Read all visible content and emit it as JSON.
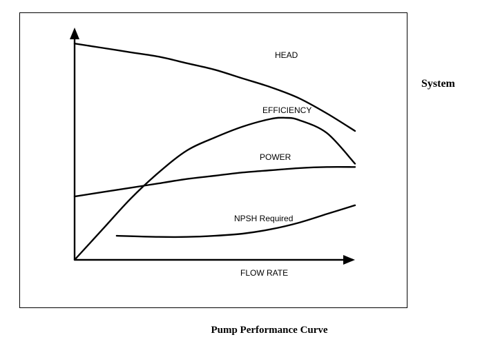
{
  "side_label": "System",
  "caption": "Pump Performance Curve",
  "chart_data": {
    "type": "line",
    "title": "Pump Performance Curve",
    "xlabel": "FLOW RATE",
    "ylabel": "",
    "x_ticks_shown": false,
    "y_ticks_shown": false,
    "grid": false,
    "legend": "none (series labelled inline)",
    "xlim": [
      0,
      1
    ],
    "ylim": [
      0,
      1
    ],
    "series": [
      {
        "name": "HEAD",
        "x": [
          0,
          0.1,
          0.2,
          0.3,
          0.4,
          0.5,
          0.6,
          0.7,
          0.8,
          0.9,
          1.0
        ],
        "y": [
          0.99,
          0.97,
          0.95,
          0.93,
          0.9,
          0.87,
          0.83,
          0.79,
          0.74,
          0.67,
          0.59
        ]
      },
      {
        "name": "EFFICIENCY",
        "x": [
          0,
          0.1,
          0.2,
          0.3,
          0.4,
          0.5,
          0.6,
          0.7,
          0.75,
          0.8,
          0.9,
          1.0
        ],
        "y": [
          0.0,
          0.14,
          0.28,
          0.4,
          0.5,
          0.56,
          0.61,
          0.645,
          0.65,
          0.64,
          0.58,
          0.44
        ]
      },
      {
        "name": "POWER",
        "x": [
          0,
          0.1,
          0.2,
          0.3,
          0.4,
          0.5,
          0.6,
          0.7,
          0.8,
          0.9,
          1.0
        ],
        "y": [
          0.29,
          0.31,
          0.33,
          0.35,
          0.37,
          0.385,
          0.4,
          0.41,
          0.42,
          0.425,
          0.425
        ]
      },
      {
        "name": "NPSH Required",
        "x": [
          0.15,
          0.3,
          0.4,
          0.5,
          0.6,
          0.7,
          0.8,
          0.9,
          1.0
        ],
        "y": [
          0.11,
          0.105,
          0.105,
          0.11,
          0.12,
          0.14,
          0.17,
          0.21,
          0.25
        ]
      }
    ]
  }
}
